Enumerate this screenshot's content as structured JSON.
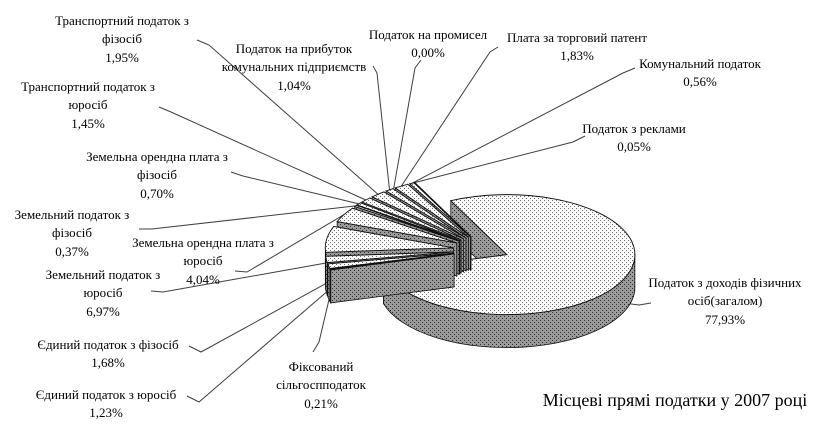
{
  "chart_data": {
    "type": "pie",
    "title": "Місцеві прямі податки у 2007 році",
    "style": "3d-exploded-grayscale-stipple",
    "legend": "none",
    "value_format": "percent, comma decimal separator",
    "colors": {
      "background": "#ffffff",
      "top_face": "#fcfcfc",
      "side_wall": "#9b9b9b",
      "stipple_dot_light": "#6a6a6a",
      "stipple_dot_dark": "#2e2e2e",
      "outline": "#111111",
      "leader_line": "#3f3f3f",
      "text": "#000000"
    },
    "slices": [
      {
        "label": "Податок з доходів фізичних\nосіб(загалом)",
        "value": 77.93,
        "value_label": "77,93%"
      },
      {
        "label": "Фіксований\nсільгоспподаток",
        "value": 0.21,
        "value_label": "0,21%"
      },
      {
        "label": "Єдиний податок з юросіб",
        "value": 1.23,
        "value_label": "1,23%"
      },
      {
        "label": "Єдиний податок з фізосіб",
        "value": 1.68,
        "value_label": "1,68%"
      },
      {
        "label": "Земельний податок з\nюросіб",
        "value": 6.97,
        "value_label": "6,97%"
      },
      {
        "label": "Земельна орендна плата з\nюросіб",
        "value": 4.04,
        "value_label": "4,04%"
      },
      {
        "label": "Земельний податок з\nфізосіб",
        "value": 0.37,
        "value_label": "0,37%"
      },
      {
        "label": "Земельна орендна плата з\nфізосіб",
        "value": 0.7,
        "value_label": "0,70%"
      },
      {
        "label": "Транспортний податок з\nюросіб",
        "value": 1.45,
        "value_label": "1,45%"
      },
      {
        "label": "Транспортний податок з\nфізосіб",
        "value": 1.95,
        "value_label": "1,95%"
      },
      {
        "label": "Податок на прибуток\nкомунальних підприємств",
        "value": 1.04,
        "value_label": "1,04%"
      },
      {
        "label": "Податок на промисел",
        "value": 0.0,
        "value_label": "0,00%"
      },
      {
        "label": "Плата за торговий патент",
        "value": 1.83,
        "value_label": "1,83%"
      },
      {
        "label": "Комунальний податок",
        "value": 0.56,
        "value_label": "0,56%"
      },
      {
        "label": "Податок з реклами",
        "value": 0.05,
        "value_label": "0,05%"
      }
    ]
  }
}
